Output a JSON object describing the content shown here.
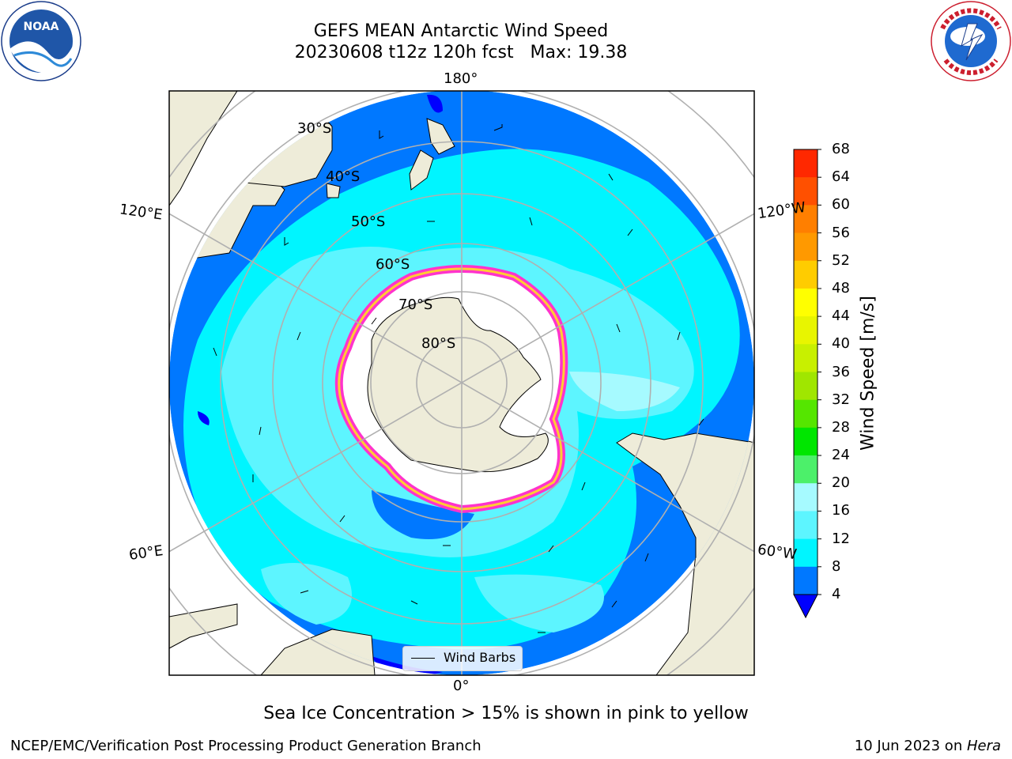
{
  "header": {
    "title": "GEFS MEAN Antarctic Wind Speed",
    "subtitle": "20230608 t12z 120h fcst   Max: 19.38"
  },
  "logos": {
    "noaa": {
      "name": "noaa-logo",
      "text": "NOAA",
      "ring_text": "NATIONAL OCEANIC AND ATMOSPHERIC ADMINISTRATION · U.S. DEPARTMENT OF COMMERCE"
    },
    "nws": {
      "name": "nws-logo",
      "ring_text": "NATIONAL WEATHER SERVICE"
    }
  },
  "map": {
    "projection": "south polar stereographic",
    "longitude_labels": {
      "top": "180°",
      "bottom": "0°",
      "upper_left": "120°E",
      "lower_left": "60°E",
      "upper_right": "120°W",
      "lower_right": "60°W"
    },
    "latitude_labels": [
      "30°S",
      "40°S",
      "50°S",
      "60°S",
      "70°S",
      "80°S"
    ],
    "legend": {
      "label": "Wind Barbs"
    },
    "colors": {
      "land": "#eeecd9",
      "sea_ice_edge_low": "#ff33cc",
      "sea_ice_edge_high": "#ffcc33",
      "grid": "#b0b0b0"
    }
  },
  "colorbar": {
    "label": "Wind Speed [m/s]",
    "ticks": [
      "68",
      "64",
      "60",
      "56",
      "52",
      "48",
      "44",
      "40",
      "36",
      "32",
      "28",
      "24",
      "20",
      "16",
      "12",
      "8",
      "4"
    ],
    "levels": [
      4,
      8,
      12,
      16,
      20,
      24,
      28,
      32,
      36,
      40,
      44,
      48,
      52,
      56,
      60,
      64,
      68
    ],
    "colors": [
      "#0078ff",
      "#00f5ff",
      "#5df5ff",
      "#a6faff",
      "#4cf06a",
      "#00e600",
      "#55e600",
      "#a0e600",
      "#c8f000",
      "#e8f500",
      "#ffff00",
      "#ffcc00",
      "#ff9900",
      "#ff7f00",
      "#ff5000",
      "#ff2800"
    ],
    "under_color": "#0000ff",
    "range": [
      4,
      68
    ]
  },
  "caption": "Sea Ice Concentration > 15% is shown in pink to yellow",
  "footer": {
    "left": "NCEP/EMC/Verification Post Processing Product Generation Branch",
    "right_date": "10 Jun 2023 on ",
    "right_host": "Hera"
  }
}
